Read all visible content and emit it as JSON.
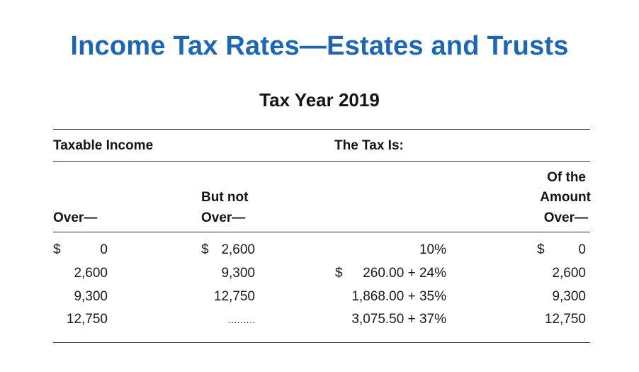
{
  "title": "Income Tax Rates—Estates and Trusts",
  "subtitle": "Tax Year 2019",
  "table": {
    "group_headers": {
      "taxable_income": "Taxable Income",
      "the_tax_is": "The Tax Is:"
    },
    "columns": {
      "over": "Over—",
      "but_not_line1": "But not",
      "but_not_line2": "Over—",
      "amount_line1": "Of the",
      "amount_line2": "Amount",
      "amount_line3": "Over—"
    },
    "currency_symbol": "$",
    "rows": [
      {
        "over": "0",
        "but_not_over": "2,600",
        "tax": "10%",
        "of_amount_over": "0"
      },
      {
        "over": "2,600",
        "but_not_over": "9,300",
        "tax": "260.00 + 24%",
        "of_amount_over": "2,600"
      },
      {
        "over": "9,300",
        "but_not_over": "12,750",
        "tax": "1,868.00 + 35%",
        "of_amount_over": "9,300"
      },
      {
        "over": "12,750",
        "but_not_over": "………",
        "tax": "3,075.50 + 37%",
        "of_amount_over": "12,750"
      }
    ]
  }
}
